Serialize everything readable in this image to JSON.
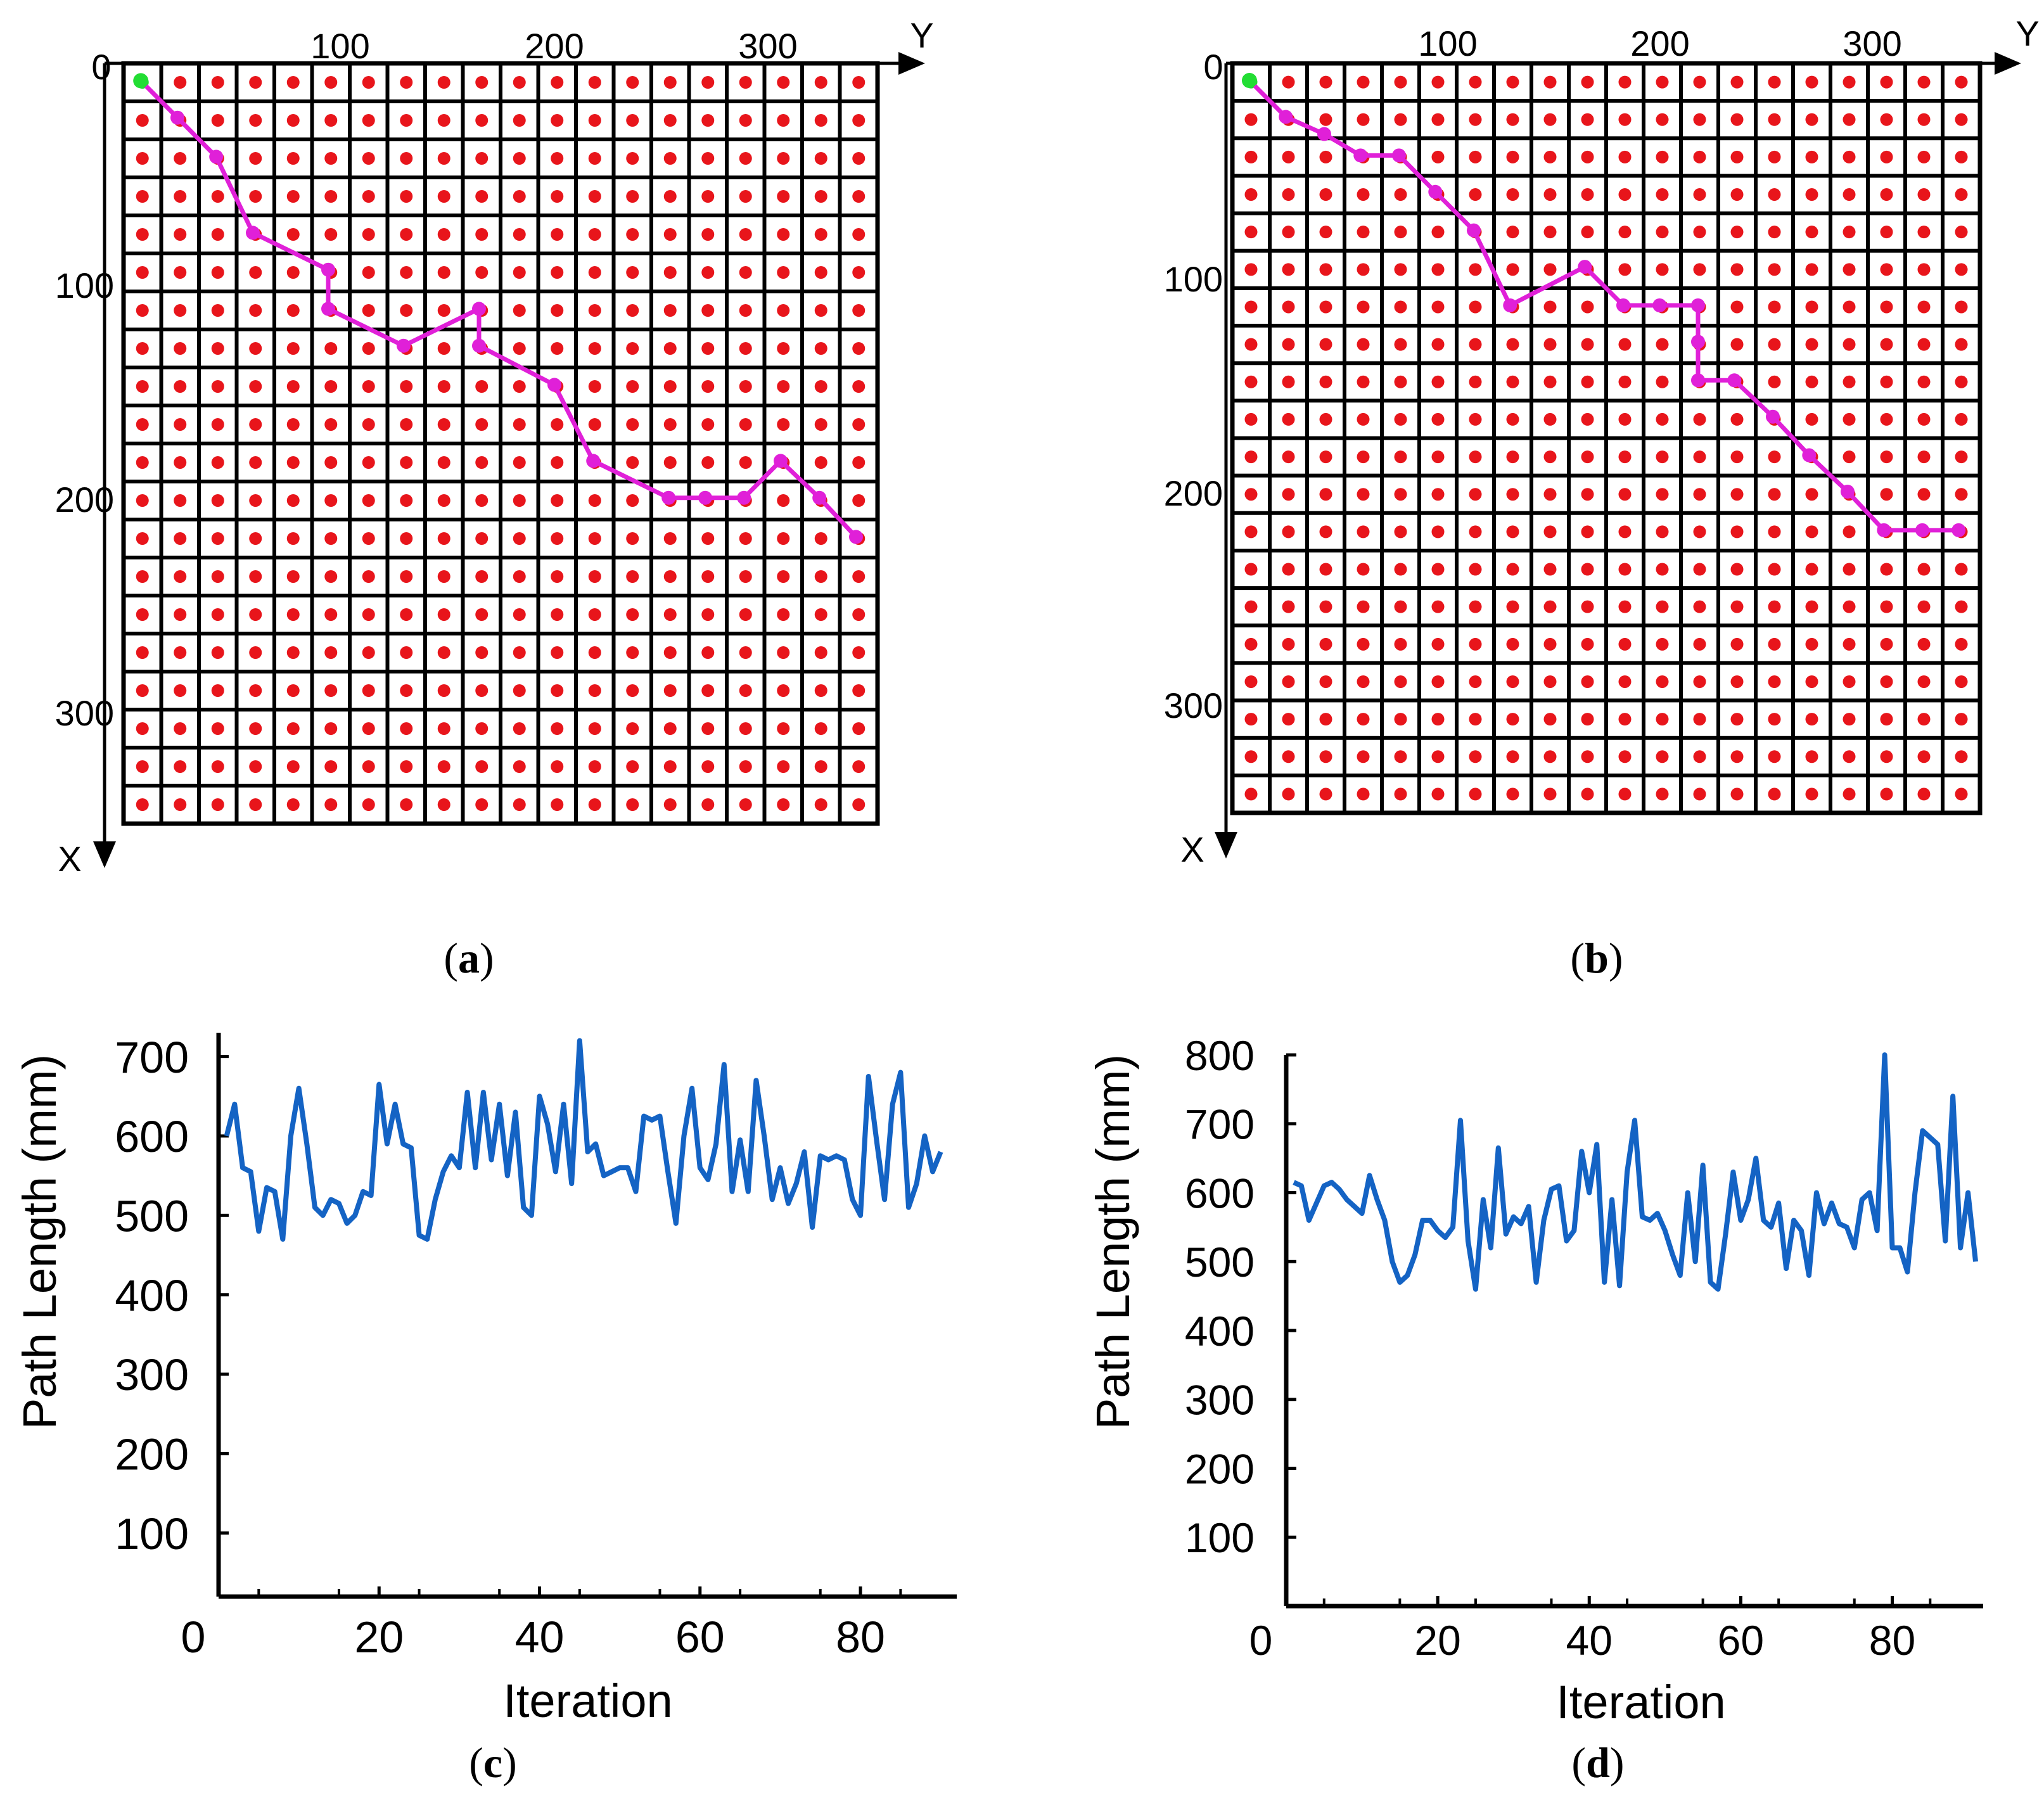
{
  "chart_data": [
    {
      "type": "grid-path",
      "panel": "(a)",
      "caption_letter": "a",
      "xlabel": "X",
      "ylabel": "Y",
      "y_ticks": [
        "100",
        "200",
        "300"
      ],
      "x_ticks": [
        "0",
        "100",
        "200",
        "300"
      ],
      "grid_rows": 20,
      "grid_cols": 20,
      "cell_mm": 17.5,
      "node_color": "#e8151b",
      "start_color": "#22dd33",
      "path_color": "#e020d8",
      "start": {
        "x": 8,
        "y": 8
      },
      "path": [
        {
          "x": 8,
          "y": 8
        },
        {
          "x": 25,
          "y": 25
        },
        {
          "x": 43,
          "y": 43
        },
        {
          "x": 78,
          "y": 60
        },
        {
          "x": 95,
          "y": 95
        },
        {
          "x": 113,
          "y": 95
        },
        {
          "x": 130,
          "y": 130
        },
        {
          "x": 113,
          "y": 165
        },
        {
          "x": 130,
          "y": 165
        },
        {
          "x": 148,
          "y": 200
        },
        {
          "x": 183,
          "y": 218
        },
        {
          "x": 200,
          "y": 253
        },
        {
          "x": 200,
          "y": 270
        },
        {
          "x": 200,
          "y": 288
        },
        {
          "x": 183,
          "y": 305
        },
        {
          "x": 200,
          "y": 323
        },
        {
          "x": 218,
          "y": 340
        }
      ]
    },
    {
      "type": "grid-path",
      "panel": "(b)",
      "caption_letter": "b",
      "xlabel": "X",
      "ylabel": "Y",
      "y_ticks": [
        "100",
        "200",
        "300"
      ],
      "x_ticks": [
        "0",
        "100",
        "200",
        "300"
      ],
      "grid_rows": 20,
      "grid_cols": 20,
      "cell_mm": 17.5,
      "node_color": "#e8151b",
      "start_color": "#22dd33",
      "path_color": "#e020d8",
      "start": {
        "x": 8,
        "y": 8
      },
      "path": [
        {
          "x": 8,
          "y": 8
        },
        {
          "x": 25,
          "y": 25
        },
        {
          "x": 33,
          "y": 43
        },
        {
          "x": 43,
          "y": 60
        },
        {
          "x": 43,
          "y": 78
        },
        {
          "x": 60,
          "y": 95
        },
        {
          "x": 78,
          "y": 113
        },
        {
          "x": 113,
          "y": 130
        },
        {
          "x": 95,
          "y": 165
        },
        {
          "x": 113,
          "y": 183
        },
        {
          "x": 113,
          "y": 200
        },
        {
          "x": 113,
          "y": 218
        },
        {
          "x": 130,
          "y": 218
        },
        {
          "x": 148,
          "y": 218
        },
        {
          "x": 148,
          "y": 235
        },
        {
          "x": 165,
          "y": 253
        },
        {
          "x": 183,
          "y": 270
        },
        {
          "x": 200,
          "y": 288
        },
        {
          "x": 218,
          "y": 305
        },
        {
          "x": 218,
          "y": 323
        },
        {
          "x": 218,
          "y": 340
        }
      ]
    },
    {
      "type": "line",
      "panel": "(c)",
      "caption_letter": "c",
      "xlabel": "Iteration",
      "ylabel": "Path Length (mm)",
      "xlim": [
        0,
        92
      ],
      "ylim": [
        20,
        730
      ],
      "x_ticks": [
        "0",
        "20",
        "40",
        "60",
        "80"
      ],
      "y_ticks": [
        "100",
        "200",
        "300",
        "400",
        "500",
        "600",
        "700"
      ],
      "line_color": "#1463c4",
      "series": [
        {
          "name": "path length",
          "values": [
            600,
            640,
            560,
            555,
            480,
            535,
            530,
            470,
            600,
            660,
            590,
            510,
            500,
            520,
            515,
            490,
            500,
            530,
            525,
            665,
            590,
            640,
            590,
            585,
            475,
            470,
            520,
            555,
            575,
            560,
            655,
            560,
            655,
            570,
            640,
            550,
            630,
            510,
            500,
            650,
            615,
            555,
            640,
            540,
            720,
            580,
            590,
            550,
            555,
            560,
            560,
            530,
            625,
            620,
            625,
            555,
            490,
            600,
            660,
            560,
            545,
            590,
            690,
            530,
            595,
            530,
            670,
            600,
            520,
            560,
            515,
            540,
            580,
            485,
            575,
            570,
            575,
            570,
            520,
            500,
            675,
            595,
            520,
            640,
            680,
            510,
            540,
            600,
            555,
            580
          ]
        }
      ]
    },
    {
      "type": "line",
      "panel": "(d)",
      "caption_letter": "d",
      "xlabel": "Iteration",
      "ylabel": "Path Length (mm)",
      "xlim": [
        0,
        92
      ],
      "ylim": [
        0,
        800
      ],
      "x_ticks": [
        "0",
        "20",
        "40",
        "60",
        "80"
      ],
      "y_ticks": [
        "100",
        "200",
        "300",
        "400",
        "500",
        "600",
        "700",
        "800"
      ],
      "line_color": "#1463c4",
      "series": [
        {
          "name": "path length",
          "values": [
            615,
            610,
            560,
            585,
            610,
            615,
            605,
            590,
            580,
            570,
            625,
            590,
            560,
            500,
            470,
            480,
            510,
            560,
            560,
            545,
            535,
            550,
            705,
            530,
            460,
            590,
            520,
            665,
            540,
            565,
            555,
            580,
            470,
            560,
            605,
            610,
            530,
            545,
            660,
            600,
            670,
            470,
            590,
            465,
            630,
            705,
            565,
            560,
            570,
            545,
            510,
            480,
            600,
            500,
            640,
            470,
            460,
            540,
            630,
            560,
            590,
            650,
            560,
            550,
            585,
            490,
            560,
            545,
            480,
            600,
            555,
            585,
            555,
            550,
            520,
            590,
            600,
            545,
            800,
            520,
            520,
            485,
            600,
            690,
            680,
            670,
            530,
            740,
            520,
            600,
            500
          ]
        }
      ]
    }
  ]
}
